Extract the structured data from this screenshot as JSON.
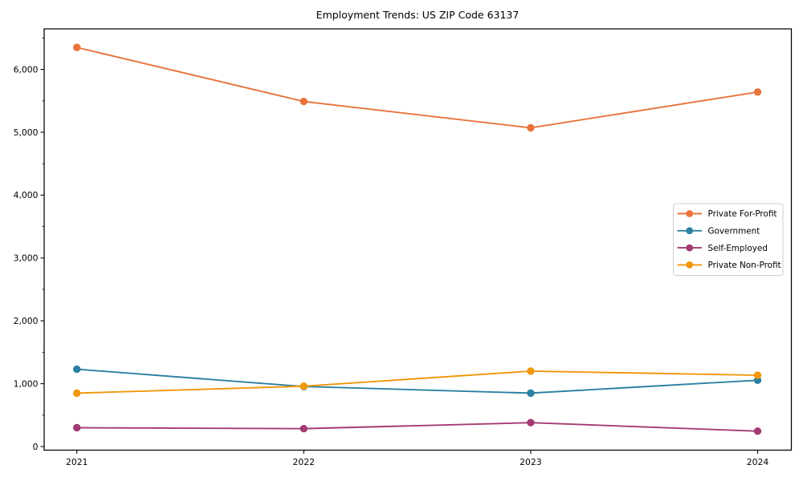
{
  "figure": {
    "background": "#ffffff",
    "spine_color": "#000000",
    "legend_border_color": "#cccccc",
    "legend_background": "#ffffff"
  },
  "chart_data": {
    "type": "line",
    "title": "Employment Trends: US ZIP Code 63137",
    "xlabel": "",
    "ylabel": "",
    "x_categories": [
      "2021",
      "2022",
      "2023",
      "2024"
    ],
    "series": [
      {
        "name": "Private For-Profit",
        "color": "#e8743b",
        "values": [
          6350,
          5490,
          5070,
          5640
        ]
      },
      {
        "name": "Government",
        "color": "#2c80a1",
        "values": [
          1230,
          955,
          850,
          1055
        ]
      },
      {
        "name": "Self-Employed",
        "color": "#a33b72",
        "values": [
          300,
          285,
          380,
          245
        ]
      },
      {
        "name": "Private Non-Profit",
        "color": "#f0970c",
        "values": [
          850,
          960,
          1200,
          1135
        ]
      }
    ],
    "ylim": [
      -57,
      6645
    ],
    "yticks": [
      {
        "value": 0,
        "label": "0"
      },
      {
        "value": 1000,
        "label": "1,000"
      },
      {
        "value": 2000,
        "label": "2,000"
      },
      {
        "value": 3000,
        "label": "3,000"
      },
      {
        "value": 4000,
        "label": "4,000"
      },
      {
        "value": 5000,
        "label": "5,000"
      },
      {
        "value": 6000,
        "label": "6,000"
      }
    ],
    "y_minor_ticks": [
      500,
      1500,
      2500,
      3500,
      4500,
      5500,
      6500
    ],
    "grid": false,
    "legend_position": "center right",
    "marker": "circle",
    "line_width": 1.9,
    "marker_radius": 4.7
  }
}
